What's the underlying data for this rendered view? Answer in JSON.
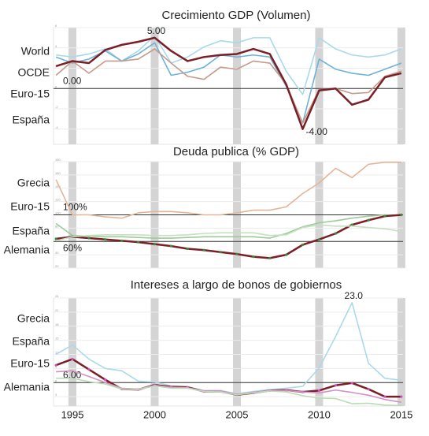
{
  "chart_data": [
    {
      "type": "line",
      "title": "Crecimiento GDP (Volumen)",
      "x": [
        1994,
        1995,
        1996,
        1997,
        1998,
        1999,
        2000,
        2001,
        2002,
        2003,
        2004,
        2005,
        2006,
        2007,
        2008,
        2009,
        2010,
        2011,
        2012,
        2013,
        2014,
        2015
      ],
      "xlim": [
        1993.85,
        2015.1
      ],
      "ylim": [
        -5.5,
        6
      ],
      "yticks": [
        -4,
        -2,
        0,
        2,
        4,
        6
      ],
      "grid": true,
      "series": [
        {
          "name": "World",
          "color": "#a9d9ec",
          "values": [
            3.3,
            3.1,
            3.4,
            3.9,
            2.7,
            3.7,
            5.2,
            2.5,
            3.1,
            4.1,
            4.7,
            4.5,
            5.0,
            5.0,
            1.7,
            -0.6,
            5.0,
            3.9,
            3.3,
            3.1,
            3.3,
            3.9
          ]
        },
        {
          "name": "OCDE",
          "color": "#6fb2d8",
          "values": [
            3.1,
            2.5,
            2.9,
            3.7,
            2.7,
            3.4,
            4.5,
            1.3,
            1.6,
            2.1,
            3.3,
            3.1,
            3.3,
            3.1,
            0.2,
            -3.4,
            2.9,
            1.9,
            1.5,
            1.3,
            1.9,
            2.5
          ]
        },
        {
          "name": "Euro-15",
          "color": "#c49a8a",
          "values": [
            1.3,
            2.7,
            1.5,
            2.7,
            2.7,
            2.9,
            3.9,
            2.5,
            1.2,
            0.9,
            2.1,
            1.9,
            2.7,
            2.5,
            0.4,
            -3.4,
            -0.1,
            0,
            -0.5,
            -0.4,
            1.2,
            1.7
          ]
        },
        {
          "name": "España",
          "color": "#7b1f26",
          "values": [
            2.2,
            2.7,
            2.5,
            3.8,
            4.3,
            4.6,
            5.0,
            3.7,
            2.7,
            3.1,
            3.3,
            3.4,
            3.9,
            3.4,
            0.4,
            -4.0,
            -0.2,
            0,
            -1.6,
            -1.1,
            1.1,
            1.5
          ]
        }
      ],
      "hlines": [
        {
          "value": 0,
          "label": "0.00"
        }
      ],
      "annotations": [
        {
          "x": 2000,
          "value": 5,
          "label": "5.00"
        },
        {
          "x": 2009,
          "value": -4,
          "label": "-4.00"
        }
      ]
    },
    {
      "type": "line",
      "title": "Deuda publica (% GDP)",
      "x": [
        1994,
        1995,
        1996,
        1997,
        1998,
        1999,
        2000,
        2001,
        2002,
        2003,
        2004,
        2005,
        2006,
        2007,
        2008,
        2009,
        2010,
        2011,
        2012,
        2013,
        2014,
        2015
      ],
      "xlim": [
        1993.85,
        2015.1
      ],
      "ylim": [
        20,
        180
      ],
      "yticks": [
        20,
        40,
        60,
        80,
        100,
        120,
        140,
        160,
        180
      ],
      "grid": true,
      "series": [
        {
          "name": "Grecia",
          "color": "#e3b598",
          "values": [
            153,
            100,
            100,
            97,
            95,
            103,
            105,
            105,
            103,
            100,
            100,
            103,
            107,
            107,
            112,
            132,
            148,
            170,
            156,
            176,
            179,
            179
          ]
        },
        {
          "name": "Euro-15",
          "color": "#9ccb98",
          "values": [
            87,
            69,
            68,
            67,
            67,
            66,
            65,
            65,
            66,
            67,
            67,
            67,
            67,
            65,
            72,
            82,
            88,
            91,
            95,
            98,
            100,
            99
          ]
        },
        {
          "name": "España",
          "color": "#7b1f26",
          "marker_color": "#3f8a3f",
          "values": [
            64,
            67,
            65,
            63,
            61,
            59,
            56,
            53,
            49,
            47,
            44,
            41,
            37,
            35,
            40,
            55,
            63,
            72,
            85,
            92,
            98,
            100
          ]
        },
        {
          "name": "Alemania",
          "color": "#c6dfc2",
          "values": [
            61,
            67,
            69,
            70,
            70,
            70,
            69,
            69,
            70,
            72,
            73,
            73,
            73,
            69,
            70,
            81,
            85,
            83,
            83,
            81,
            79,
            75
          ]
        }
      ],
      "hlines": [
        {
          "value": 100,
          "label": "100%"
        },
        {
          "value": 60,
          "label": "60%"
        }
      ],
      "annotations": []
    },
    {
      "type": "line",
      "title": "Intereses a largo de bonos de gobiernos",
      "x": [
        1994,
        1995,
        1996,
        1997,
        1998,
        1999,
        2000,
        2001,
        2002,
        2003,
        2004,
        2005,
        2006,
        2007,
        2008,
        2009,
        2010,
        2011,
        2012,
        2013,
        2014,
        2015
      ],
      "xlim": [
        1993.85,
        2015.1
      ],
      "ylim": [
        1,
        24
      ],
      "yticks": [
        3,
        6,
        9,
        12,
        15,
        18,
        21,
        24
      ],
      "grid": true,
      "xticks": [
        1995,
        2000,
        2005,
        2010,
        2015
      ],
      "series": [
        {
          "name": "Grecia",
          "color": "#a9d9ec",
          "values": [
            12,
            14,
            11,
            9,
            8.5,
            6.3,
            6.1,
            5.3,
            5.1,
            4.3,
            4.3,
            3.6,
            4.1,
            4.5,
            4.8,
            5.2,
            9.1,
            15.8,
            23.0,
            10.1,
            6.9,
            6.5
          ]
        },
        {
          "name": "España",
          "color": "#7b1f26",
          "marker_color": "#d050c0",
          "values": [
            9.7,
            11.0,
            8.8,
            6.6,
            4.6,
            4.5,
            5.5,
            5.1,
            5.0,
            4.1,
            4.1,
            3.4,
            3.8,
            4.3,
            4.4,
            4.0,
            4.3,
            5.4,
            5.9,
            4.6,
            3.0,
            3.0
          ]
        },
        {
          "name": "Euro-15",
          "color": "#d490c4",
          "values": [
            8.3,
            8.5,
            7.3,
            6.0,
            4.8,
            4.6,
            5.4,
            5.0,
            4.9,
            4.2,
            4.2,
            3.5,
            3.9,
            4.3,
            4.3,
            4.0,
            3.8,
            4.4,
            3.9,
            3.3,
            2.4,
            1.8
          ]
        },
        {
          "name": "Alemania",
          "color": "#b9dcb4",
          "values": [
            6.9,
            6.9,
            6.2,
            5.7,
            4.6,
            4.5,
            5.3,
            4.8,
            4.8,
            4.1,
            4.0,
            3.4,
            3.8,
            4.2,
            4.0,
            3.2,
            2.7,
            2.6,
            1.5,
            1.6,
            1.2,
            1.1
          ]
        }
      ],
      "hlines": [
        {
          "value": 6,
          "label": "6.00"
        }
      ],
      "annotations": [
        {
          "x": 2012,
          "value": 23.0,
          "label": "23.0"
        }
      ]
    }
  ]
}
